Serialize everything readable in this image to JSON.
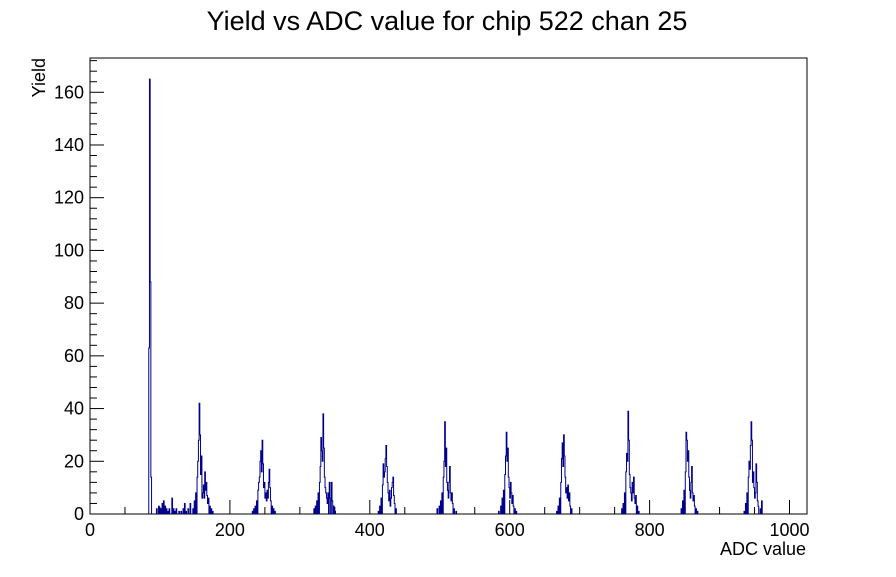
{
  "chart_data": {
    "type": "histogram",
    "title": "Yield vs ADC value for chip 522 chan 25",
    "xlabel": "ADC value",
    "ylabel": "Yield",
    "xlim": [
      0,
      1025
    ],
    "ylim": [
      0,
      173
    ],
    "x_ticks": [
      0,
      200,
      400,
      600,
      800,
      1000
    ],
    "y_ticks": [
      0,
      20,
      40,
      60,
      80,
      100,
      120,
      140,
      160
    ],
    "bin_width": 1,
    "line_color": "#00008b",
    "grid": false,
    "legend": "none",
    "bins": [
      [
        84,
        63
      ],
      [
        85,
        165
      ],
      [
        86,
        88
      ],
      [
        87,
        14
      ],
      [
        95,
        2
      ],
      [
        98,
        3
      ],
      [
        101,
        2
      ],
      [
        103,
        4
      ],
      [
        105,
        5
      ],
      [
        107,
        3
      ],
      [
        109,
        2
      ],
      [
        111,
        1
      ],
      [
        113,
        2
      ],
      [
        117,
        6
      ],
      [
        119,
        2
      ],
      [
        121,
        1
      ],
      [
        123,
        2
      ],
      [
        127,
        1
      ],
      [
        130,
        1
      ],
      [
        133,
        2
      ],
      [
        135,
        4
      ],
      [
        137,
        1
      ],
      [
        140,
        2
      ],
      [
        143,
        4
      ],
      [
        147,
        2
      ],
      [
        149,
        5
      ],
      [
        151,
        8
      ],
      [
        153,
        14
      ],
      [
        154,
        20
      ],
      [
        155,
        28
      ],
      [
        156,
        42
      ],
      [
        157,
        30
      ],
      [
        158,
        15
      ],
      [
        159,
        22
      ],
      [
        160,
        6
      ],
      [
        161,
        8
      ],
      [
        162,
        11
      ],
      [
        163,
        6
      ],
      [
        164,
        16
      ],
      [
        165,
        9
      ],
      [
        166,
        12
      ],
      [
        167,
        7
      ],
      [
        168,
        4
      ],
      [
        169,
        6
      ],
      [
        171,
        3
      ],
      [
        173,
        2
      ],
      [
        175,
        1
      ],
      [
        232,
        1
      ],
      [
        234,
        2
      ],
      [
        236,
        3
      ],
      [
        238,
        5
      ],
      [
        240,
        9
      ],
      [
        241,
        12
      ],
      [
        242,
        14
      ],
      [
        243,
        20
      ],
      [
        244,
        24
      ],
      [
        245,
        16
      ],
      [
        246,
        28
      ],
      [
        247,
        19
      ],
      [
        248,
        10
      ],
      [
        249,
        12
      ],
      [
        250,
        6
      ],
      [
        251,
        8
      ],
      [
        252,
        5
      ],
      [
        253,
        9
      ],
      [
        254,
        6
      ],
      [
        255,
        12
      ],
      [
        256,
        17
      ],
      [
        257,
        10
      ],
      [
        258,
        5
      ],
      [
        260,
        3
      ],
      [
        262,
        2
      ],
      [
        264,
        1
      ],
      [
        320,
        2
      ],
      [
        322,
        3
      ],
      [
        324,
        5
      ],
      [
        326,
        8
      ],
      [
        328,
        12
      ],
      [
        329,
        18
      ],
      [
        330,
        29
      ],
      [
        331,
        24
      ],
      [
        332,
        20
      ],
      [
        333,
        38
      ],
      [
        334,
        25
      ],
      [
        335,
        14
      ],
      [
        336,
        10
      ],
      [
        337,
        8
      ],
      [
        338,
        6
      ],
      [
        339,
        4
      ],
      [
        340,
        8
      ],
      [
        342,
        12
      ],
      [
        343,
        6
      ],
      [
        345,
        12
      ],
      [
        346,
        5
      ],
      [
        348,
        3
      ],
      [
        350,
        1
      ],
      [
        412,
        1
      ],
      [
        414,
        3
      ],
      [
        416,
        6
      ],
      [
        418,
        11
      ],
      [
        419,
        19
      ],
      [
        420,
        14
      ],
      [
        421,
        16
      ],
      [
        422,
        21
      ],
      [
        423,
        26
      ],
      [
        424,
        18
      ],
      [
        425,
        12
      ],
      [
        426,
        8
      ],
      [
        427,
        5
      ],
      [
        428,
        9
      ],
      [
        429,
        3
      ],
      [
        430,
        6
      ],
      [
        431,
        10
      ],
      [
        432,
        12
      ],
      [
        433,
        14
      ],
      [
        434,
        7
      ],
      [
        435,
        4
      ],
      [
        437,
        2
      ],
      [
        496,
        2
      ],
      [
        499,
        3
      ],
      [
        501,
        5
      ],
      [
        503,
        8
      ],
      [
        505,
        14
      ],
      [
        506,
        20
      ],
      [
        507,
        35
      ],
      [
        508,
        18
      ],
      [
        509,
        25
      ],
      [
        510,
        12
      ],
      [
        511,
        9
      ],
      [
        512,
        6
      ],
      [
        513,
        12
      ],
      [
        514,
        18
      ],
      [
        515,
        8
      ],
      [
        516,
        5
      ],
      [
        517,
        8
      ],
      [
        518,
        4
      ],
      [
        520,
        2
      ],
      [
        523,
        1
      ],
      [
        584,
        1
      ],
      [
        587,
        3
      ],
      [
        589,
        6
      ],
      [
        591,
        9
      ],
      [
        593,
        15
      ],
      [
        594,
        22
      ],
      [
        595,
        31
      ],
      [
        596,
        20
      ],
      [
        597,
        25
      ],
      [
        598,
        14
      ],
      [
        599,
        10
      ],
      [
        600,
        6
      ],
      [
        601,
        12
      ],
      [
        602,
        8
      ],
      [
        603,
        4
      ],
      [
        604,
        7
      ],
      [
        605,
        3
      ],
      [
        607,
        2
      ],
      [
        609,
        1
      ],
      [
        667,
        1
      ],
      [
        669,
        3
      ],
      [
        671,
        6
      ],
      [
        673,
        12
      ],
      [
        674,
        21
      ],
      [
        675,
        27
      ],
      [
        676,
        18
      ],
      [
        677,
        30
      ],
      [
        678,
        22
      ],
      [
        679,
        14
      ],
      [
        680,
        8
      ],
      [
        681,
        10
      ],
      [
        682,
        6
      ],
      [
        683,
        11
      ],
      [
        684,
        5
      ],
      [
        685,
        8
      ],
      [
        686,
        3
      ],
      [
        688,
        2
      ],
      [
        760,
        2
      ],
      [
        762,
        4
      ],
      [
        764,
        8
      ],
      [
        766,
        16
      ],
      [
        767,
        23
      ],
      [
        768,
        20
      ],
      [
        769,
        39
      ],
      [
        770,
        28
      ],
      [
        771,
        15
      ],
      [
        772,
        10
      ],
      [
        773,
        8
      ],
      [
        774,
        5
      ],
      [
        775,
        12
      ],
      [
        776,
        8
      ],
      [
        777,
        14
      ],
      [
        778,
        6
      ],
      [
        779,
        4
      ],
      [
        780,
        7
      ],
      [
        782,
        3
      ],
      [
        784,
        1
      ],
      [
        845,
        2
      ],
      [
        847,
        5
      ],
      [
        849,
        9
      ],
      [
        851,
        16
      ],
      [
        852,
        31
      ],
      [
        853,
        28
      ],
      [
        854,
        20
      ],
      [
        855,
        24
      ],
      [
        856,
        14
      ],
      [
        857,
        9
      ],
      [
        858,
        6
      ],
      [
        859,
        12
      ],
      [
        860,
        18
      ],
      [
        861,
        8
      ],
      [
        862,
        5
      ],
      [
        863,
        7
      ],
      [
        864,
        3
      ],
      [
        866,
        2
      ],
      [
        868,
        1
      ],
      [
        935,
        1
      ],
      [
        937,
        4
      ],
      [
        939,
        8
      ],
      [
        941,
        14
      ],
      [
        942,
        20
      ],
      [
        943,
        17
      ],
      [
        944,
        26
      ],
      [
        945,
        35
      ],
      [
        946,
        28
      ],
      [
        947,
        12
      ],
      [
        948,
        16
      ],
      [
        949,
        10
      ],
      [
        950,
        6
      ],
      [
        951,
        8
      ],
      [
        952,
        19
      ],
      [
        953,
        12
      ],
      [
        954,
        5
      ],
      [
        955,
        3
      ],
      [
        958,
        2
      ],
      [
        960,
        5
      ]
    ]
  }
}
